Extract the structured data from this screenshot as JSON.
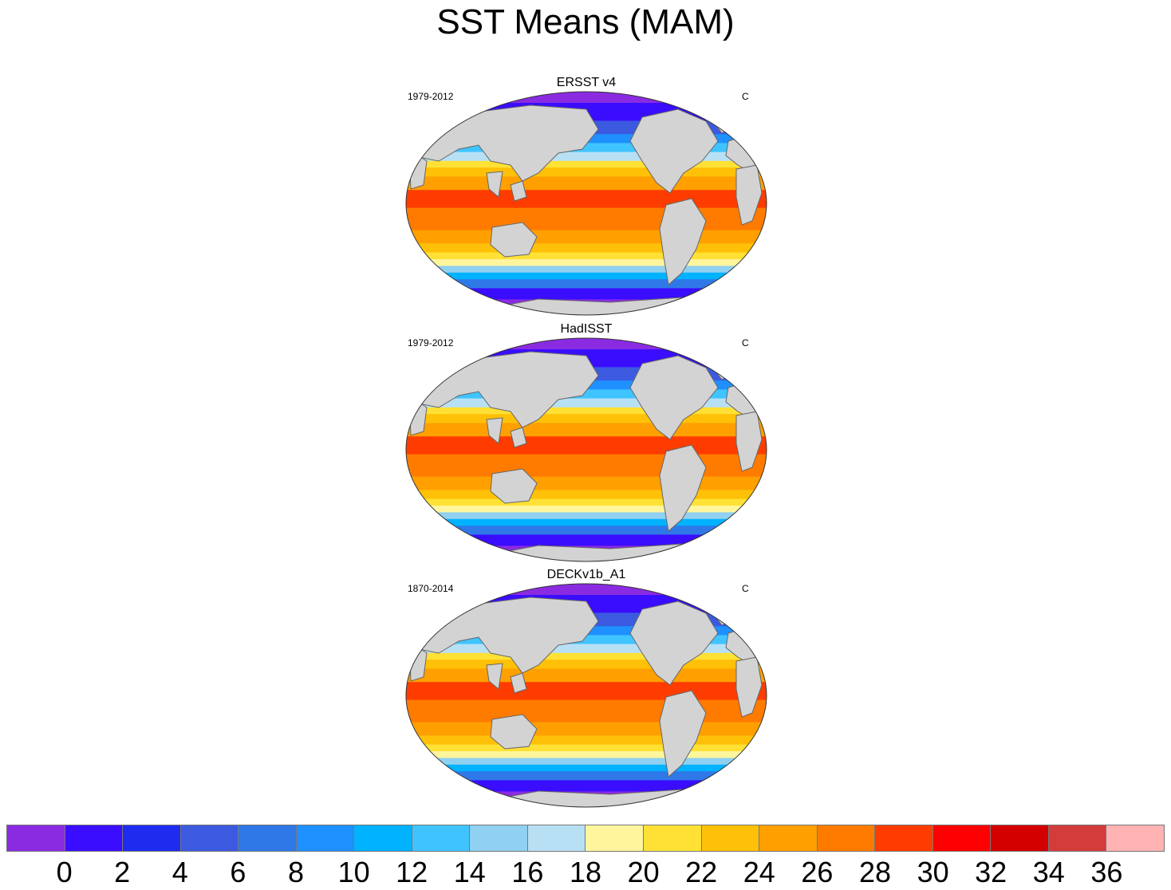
{
  "title": "SST Means (MAM)",
  "panels": [
    {
      "title": "ERSST v4",
      "left_label": "1979-2012",
      "right_label": "C"
    },
    {
      "title": "HadISST",
      "left_label": "1979-2012",
      "right_label": "C"
    },
    {
      "title": "DECKv1b_A1",
      "left_label": "1870-2014",
      "right_label": "C"
    }
  ],
  "colorbar": {
    "colors": [
      "#8a2be2",
      "#3a0dff",
      "#1e2cf0",
      "#3c5ae0",
      "#2f78e8",
      "#1e90ff",
      "#00b2ff",
      "#40c4ff",
      "#90d0f0",
      "#b8e0f5",
      "#fff59d",
      "#ffe135",
      "#ffc107",
      "#ffa000",
      "#ff7b00",
      "#ff3c00",
      "#ff0000",
      "#d40000",
      "#d43c3c",
      "#ffb3b3"
    ],
    "labels": [
      "0",
      "2",
      "4",
      "6",
      "8",
      "10",
      "12",
      "14",
      "16",
      "18",
      "20",
      "22",
      "24",
      "26",
      "28",
      "30",
      "32",
      "34",
      "36"
    ]
  },
  "land_color": "#d3d3d3"
}
